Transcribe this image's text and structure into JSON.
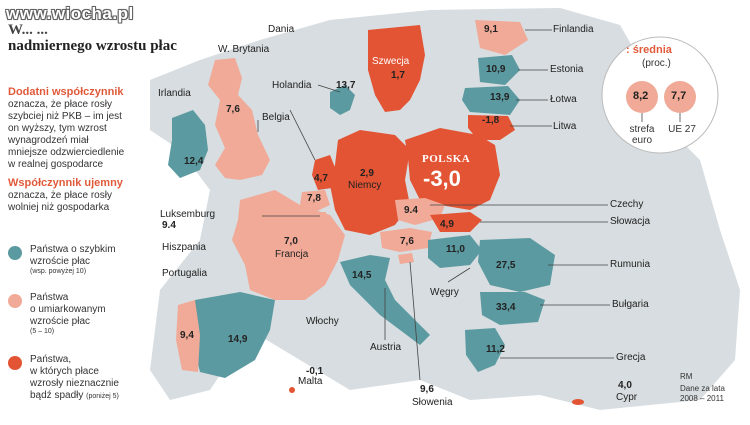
{
  "watermark": "www.wiocha.pl",
  "title_line1": "W... ...",
  "title_line2": "nadmiernego wzrostu płac",
  "side": {
    "positive_heading": "Dodatni współczynnik",
    "positive_text": [
      "oznacza, że płace rosły",
      "szybciej niż PKB – im jest",
      "on wyższy, tym wzrost",
      "wynagrodzeń miał",
      "mniejsze odzwierciedlenie",
      "w realnej gospodarce"
    ],
    "negative_heading": "Współczynnik ujemny",
    "negative_text": [
      "oznacza, że płace rosły",
      "wolniej niż gospodarka"
    ]
  },
  "legend": [
    {
      "lines": [
        "Państwa o szybkim",
        "wzroście płac"
      ],
      "note": "(wsp. powyżej 10)",
      "color": "#5b9aa0"
    },
    {
      "lines": [
        "Państwa",
        "o umiarkowanym",
        "wzroście płac"
      ],
      "note": "(5 – 10)",
      "color": "#f0aa97"
    },
    {
      "lines": [
        "Państwa,",
        "w których płace",
        "wzrosły nieznacznie",
        "bądź spadły"
      ],
      "note": "(poniżej 5)",
      "color": "#e25434"
    }
  ],
  "colors": {
    "fast": "#5b9aa0",
    "moderate": "#f0aa97",
    "slow": "#e25434",
    "land": "#d7dde0"
  },
  "countries": [
    {
      "name": "Dania",
      "value": "13,7"
    },
    {
      "name": "W. Brytania",
      "value": "7,6"
    },
    {
      "name": "Irlandia",
      "value": "12,4"
    },
    {
      "name": "Holandia",
      "value": "4,7"
    },
    {
      "name": "Belgia",
      "value": "7,8"
    },
    {
      "name": "Szwecja",
      "value": "1,7"
    },
    {
      "name": "Finlandia",
      "value": "9,1"
    },
    {
      "name": "Estonia",
      "value": "10,9"
    },
    {
      "name": "Łotwa",
      "value": "13,9"
    },
    {
      "name": "Litwa",
      "value": "-1,8"
    },
    {
      "name": "Niemcy",
      "value": "2,9"
    },
    {
      "name": "POLSKA",
      "value": "-3,0"
    },
    {
      "name": "Czechy",
      "value": "9.4"
    },
    {
      "name": "Słowacja",
      "value": "4,9"
    },
    {
      "name": "Luksemburg",
      "value": "9.4"
    },
    {
      "name": "Francja",
      "value": "7,0"
    },
    {
      "name": "Austria",
      "value": "7,6"
    },
    {
      "name": "Węgry",
      "value": "11,0"
    },
    {
      "name": "Rumunia",
      "value": "27,5"
    },
    {
      "name": "Hiszpania",
      "value": "14,9"
    },
    {
      "name": "Portugalia",
      "value": "9,4"
    },
    {
      "name": "Włochy",
      "value": "14,5"
    },
    {
      "name": "Bułgaria",
      "value": "33,4"
    },
    {
      "name": "Grecja",
      "value": "11,2"
    },
    {
      "name": "Malta",
      "value": "-0,1"
    },
    {
      "name": "Słowenia",
      "value": "9,6"
    },
    {
      "name": "Cypr",
      "value": "4,0"
    }
  ],
  "average": {
    "title": "średnia",
    "sub": "(proc.)",
    "euro_value": "8,2",
    "euro_label": [
      "strefa",
      "euro"
    ],
    "eu_value": "7,7",
    "eu_label": "UE 27"
  },
  "credit": "RM",
  "data_note": [
    "Dane za lata",
    "2008 – 2011"
  ]
}
